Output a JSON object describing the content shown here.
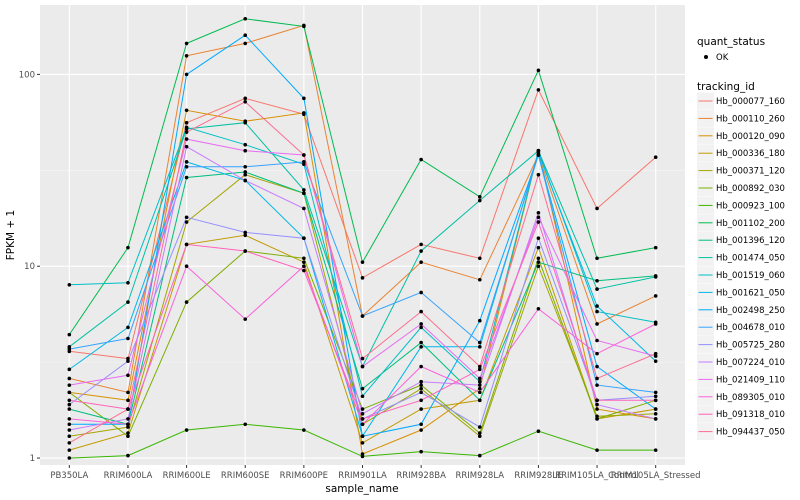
{
  "chart_data": {
    "type": "line",
    "xlabel": "sample_name",
    "ylabel": "FPKM + 1",
    "yscale": "log10",
    "ylim": [
      0.92,
      230
    ],
    "y_ticks": [
      1,
      10,
      100
    ],
    "y_tick_labels": [
      "1",
      "10",
      "100"
    ],
    "grid": true,
    "legend_position": "right",
    "categories": [
      "PB350LA",
      "RRIM600LA",
      "RRIM600LE",
      "RRIM600SE",
      "RRIM600PE",
      "RRIM901LA",
      "RRIM928BA",
      "RRIM928LA",
      "RRIM928LE",
      "RRIM105LA_Control",
      "RRIM105LA_Stressed"
    ],
    "category_labels": [
      "PB350LA",
      "RRIM600LA",
      "RRIM600LE",
      "RRIM600SE",
      "RRIM600PE",
      "RRIM901LA",
      "RRIM928BA",
      "RRIM928LA",
      "RRIM928LE",
      "RRIM105LA_Control",
      "RRIM105LA_Stressed"
    ],
    "shape_legend": {
      "title": "quant_status",
      "entries": [
        "OK"
      ]
    },
    "color_legend_title": "tracking_id",
    "series": [
      {
        "name": "Hb_000077_160",
        "color": "#F8766D",
        "values": [
          3.6,
          3.3,
          56,
          75,
          62,
          8.7,
          13,
          11,
          83,
          20,
          37
        ]
      },
      {
        "name": "Hb_000110_260",
        "color": "#EA8331",
        "values": [
          2.6,
          2.2,
          125,
          145,
          180,
          5.5,
          10.5,
          8.5,
          38,
          5.0,
          7.0
        ]
      },
      {
        "name": "Hb_000120_090",
        "color": "#D89000",
        "values": [
          2.2,
          2.0,
          65,
          57,
          63,
          1.05,
          1.4,
          2.3,
          40,
          1.8,
          1.6
        ]
      },
      {
        "name": "Hb_000336_180",
        "color": "#C09B00",
        "values": [
          1.1,
          1.35,
          13,
          14.5,
          10.5,
          1.2,
          1.8,
          2.0,
          12.5,
          1.6,
          1.8
        ]
      },
      {
        "name": "Hb_000371_120",
        "color": "#A3A500",
        "values": [
          1.3,
          1.45,
          17,
          30,
          24,
          1.5,
          2.3,
          1.3,
          10,
          1.65,
          1.7
        ]
      },
      {
        "name": "Hb_000892_030",
        "color": "#7CAE00",
        "values": [
          2.2,
          1.3,
          6.5,
          12.0,
          11.0,
          1.8,
          2.4,
          1.35,
          11.0,
          1.6,
          2.0
        ]
      },
      {
        "name": "Hb_000923_100",
        "color": "#39B600",
        "values": [
          1.0,
          1.03,
          1.4,
          1.5,
          1.4,
          1.02,
          1.08,
          1.03,
          1.38,
          1.1,
          1.1
        ]
      },
      {
        "name": "Hb_001102_200",
        "color": "#00BB4E",
        "values": [
          4.4,
          12.5,
          145,
          195,
          178,
          10.5,
          36,
          23,
          105,
          11,
          12.5
        ]
      },
      {
        "name": "Hb_001396_120",
        "color": "#00BF7D",
        "values": [
          1.8,
          1.5,
          29,
          31,
          24,
          2.3,
          4.0,
          2.0,
          10.5,
          8.4,
          8.9
        ]
      },
      {
        "name": "Hb_001474_050",
        "color": "#00C1A3",
        "values": [
          3.8,
          6.5,
          52,
          56,
          25,
          3.0,
          12,
          22,
          40,
          7.6,
          8.8
        ]
      },
      {
        "name": "Hb_001519_060",
        "color": "#00BFC4",
        "values": [
          8.0,
          8.2,
          53,
          43,
          34,
          2.1,
          4.8,
          2.5,
          40,
          5.8,
          5.1
        ]
      },
      {
        "name": "Hb_001621_050",
        "color": "#00B8E7",
        "values": [
          2.9,
          4.8,
          35,
          28,
          14,
          1.3,
          3.8,
          3.8,
          39,
          6.2,
          3.2
        ]
      },
      {
        "name": "Hb_002498_250",
        "color": "#00A9FF",
        "values": [
          1.5,
          1.5,
          100,
          160,
          75,
          1.3,
          1.5,
          5.2,
          38,
          3.0,
          1.8
        ]
      },
      {
        "name": "Hb_004678_010",
        "color": "#35A2FF",
        "values": [
          3.7,
          4.2,
          33,
          33,
          35,
          5.5,
          7.3,
          4.0,
          38,
          2.4,
          2.2
        ]
      },
      {
        "name": "Hb_005725_280",
        "color": "#9590FF",
        "values": [
          1.9,
          3.2,
          18,
          15,
          14,
          1.6,
          2.2,
          1.45,
          14,
          2.0,
          2.1
        ]
      },
      {
        "name": "Hb_007224_010",
        "color": "#C77CFF",
        "values": [
          1.4,
          1.6,
          42,
          28,
          20,
          1.7,
          2.5,
          2.4,
          19,
          1.9,
          1.6
        ]
      },
      {
        "name": "Hb_021409_110",
        "color": "#E76BF3",
        "values": [
          2.4,
          2.7,
          46,
          40,
          38,
          3.0,
          5.0,
          2.6,
          18,
          4.1,
          3.4
        ]
      },
      {
        "name": "Hb_089305_010",
        "color": "#FA62DB",
        "values": [
          1.6,
          1.5,
          10,
          5.3,
          10,
          1.5,
          3.0,
          2.2,
          6.0,
          3.5,
          5.0
        ]
      },
      {
        "name": "Hb_091318_010",
        "color": "#FF62BC",
        "values": [
          2.0,
          1.8,
          13,
          12,
          9.5,
          1.6,
          2.0,
          2.9,
          17,
          2.0,
          2.0
        ]
      },
      {
        "name": "Hb_094437_050",
        "color": "#FF6C91",
        "values": [
          1.2,
          1.8,
          50,
          72,
          38,
          3.3,
          5.8,
          3.0,
          30,
          2.6,
          3.5
        ]
      }
    ]
  }
}
